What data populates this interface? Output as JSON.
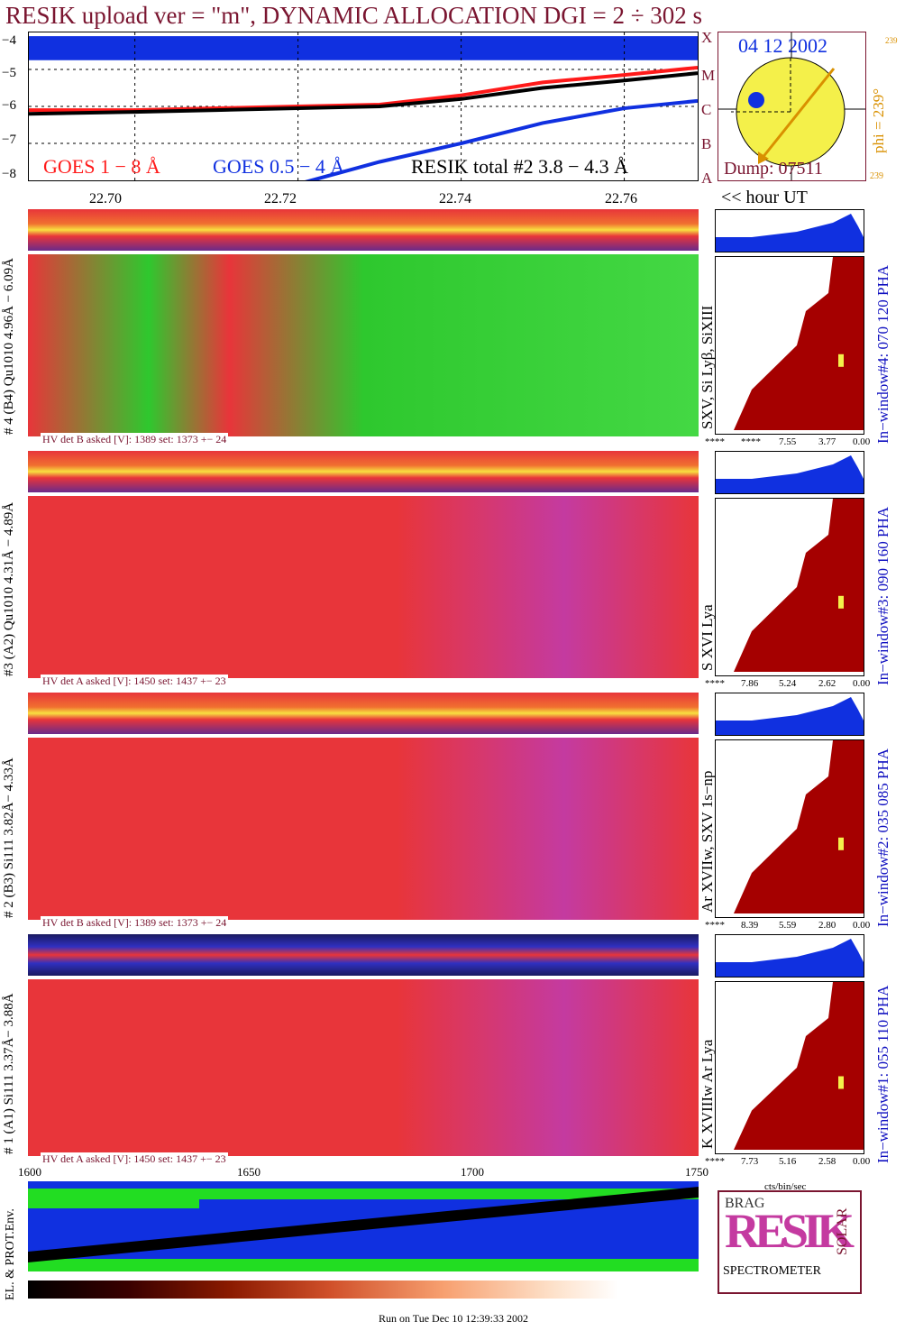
{
  "title": "RESIK upload ver = \"m\", DYNAMIC ALLOCATION  DGI =   2 ÷ 302 s",
  "colors": {
    "red": "#ff1a1a",
    "blue": "#1030e0",
    "black": "#000000",
    "title": "#7a1530",
    "green": "#22dd22",
    "magenta": "#c43aa0"
  },
  "goes": {
    "yticks": [
      "−4",
      "−5",
      "−6",
      "−7",
      "−8"
    ],
    "legend_red": "GOES 1 − 8 Å",
    "legend_blue": "GOES 0.5 − 4 Å",
    "legend_black": "RESIK total #2  3.8 − 4.3 Å",
    "class_labels": [
      "A",
      "B",
      "C",
      "M",
      "X"
    ]
  },
  "time_ticks": [
    "22.70",
    "22.72",
    "22.74",
    "22.76"
  ],
  "hour_label": "<< hour UT",
  "sun": {
    "date": "04 12 2002",
    "phi": "phi = 239°",
    "phi_small": "239",
    "phi_bottom": "239",
    "dump": "Dump: 07511"
  },
  "channels": [
    {
      "left_label": "# 4 (B4) Qu1010 4.96Å − 6.09Å",
      "lines": "SXV, Si Lyβ, SiXIII",
      "hv": "HV det B asked [V]:  1389 set:  1373 +−   24",
      "axis": [
        "****",
        "****",
        "7.55",
        "3.77",
        "0.00"
      ],
      "window": "In−window#4:  070 120 PHA"
    },
    {
      "left_label": "#3 (A2) Qu1010  4.31Å − 4.89Å",
      "lines": "S XVI Lya",
      "hv": "HV det A asked [V]:  1450 set:  1437 +−   23",
      "axis": [
        "****",
        "7.86",
        "5.24",
        "2.62",
        "0.00"
      ],
      "window": "In−window#3:  090 160 PHA"
    },
    {
      "left_label": "# 2 (B3) Si111  3.82Å− 4.33Å",
      "lines": "Ar XVIIw,  SXV 1s−np",
      "hv": "HV det B asked [V]:  1389 set:  1373 +−   24",
      "axis": [
        "****",
        "8.39",
        "5.59",
        "2.80",
        "0.00"
      ],
      "window": "In−window#2:  035 085 PHA"
    },
    {
      "left_label": "# 1 (A1) Si111  3.37Å− 3.88Å",
      "lines": "K XVIIIw  Ar Lya",
      "hv": "HV det A asked [V]:  1450 set:  1437 +−   23",
      "axis": [
        "****",
        "7.73",
        "5.16",
        "2.58",
        "0.00"
      ],
      "window": "In−window#1:  055 110 PHA"
    }
  ],
  "bottom_axis": [
    "1600",
    "1650",
    "1700",
    "1750"
  ],
  "pha_unit": "cts/bin/sec",
  "env_label": "EL. & PROT.Env.",
  "logo": {
    "big": "RESIK",
    "side_top": "BRAG",
    "side": "SOLAR",
    "foot": "SPECTROMETER"
  },
  "run_label": "Run on Tue Dec 10 12:39:33 2002",
  "chart_data": {
    "type": "line",
    "title": "RESIK upload ver = \"m\", DYNAMIC ALLOCATION  DGI =   2 ÷ 302 s",
    "xlabel": "<< hour UT",
    "x": [
      22.687,
      22.7,
      22.71,
      22.72,
      22.73,
      22.74,
      22.75,
      22.76,
      22.769
    ],
    "series": [
      {
        "name": "GOES 1 − 8 Å",
        "color": "#ff1a1a",
        "values": [
          -6.1,
          -6.1,
          -6.05,
          -6.0,
          -5.95,
          -5.7,
          -5.35,
          -5.15,
          -4.95
        ]
      },
      {
        "name": "GOES 0.5 − 4 Å",
        "color": "#1030e0",
        "values": [
          null,
          null,
          null,
          -8.1,
          -7.5,
          -7.0,
          -6.45,
          -6.05,
          -5.85
        ]
      },
      {
        "name": "RESIK total #2  3.8 − 4.3 Å",
        "color": "#000000",
        "values": [
          -6.2,
          -6.15,
          -6.1,
          -6.05,
          -6.0,
          -5.8,
          -5.5,
          -5.3,
          -5.1
        ]
      }
    ],
    "ylim": [
      -8,
      -4
    ]
  }
}
